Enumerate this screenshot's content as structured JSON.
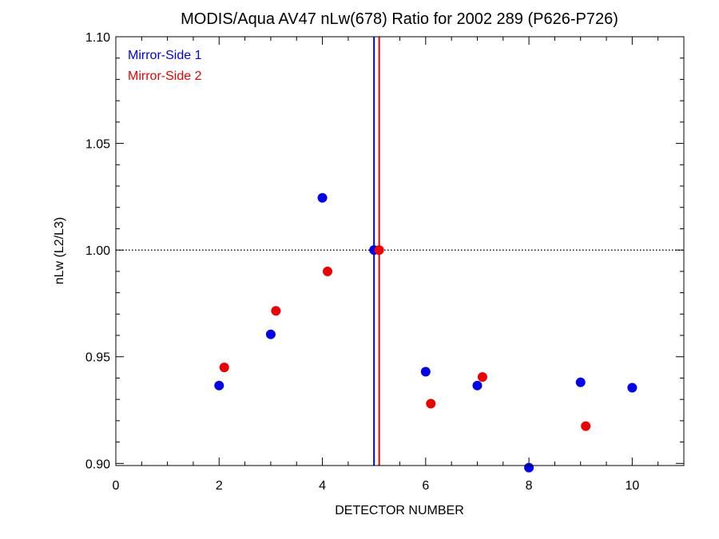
{
  "chart_data": {
    "type": "scatter",
    "title": "MODIS/Aqua AV47 nLw(678) Ratio for 2002 289 (P626-P726)",
    "xlabel": "DETECTOR NUMBER",
    "ylabel": "nLw (L2/L3)",
    "xlim": [
      0,
      11
    ],
    "ylim": [
      0.899,
      1.1
    ],
    "xticks": [
      0,
      2,
      4,
      6,
      8,
      10
    ],
    "xtick_labels": [
      "0",
      "2",
      "4",
      "6",
      "8",
      "10"
    ],
    "yticks": [
      0.9,
      0.95,
      1.0,
      1.05,
      1.1
    ],
    "ytick_labels": [
      "0.90",
      "0.95",
      "1.00",
      "1.05",
      "1.10"
    ],
    "reference_line": 1.0,
    "series": [
      {
        "name": "Mirror-Side 1",
        "color": "#0000ee",
        "x": [
          2,
          3,
          4,
          5,
          6,
          7,
          8,
          9,
          10
        ],
        "y": [
          0.9365,
          0.9605,
          1.0245,
          1.0,
          0.943,
          0.9365,
          0.898,
          0.938,
          0.9355
        ],
        "vline": 5.0
      },
      {
        "name": "Mirror-Side 2",
        "color": "#ee0000",
        "x": [
          2.1,
          3.1,
          4.1,
          5.1,
          6.1,
          7.1,
          9.1
        ],
        "y": [
          0.945,
          0.9715,
          0.99,
          1.0,
          0.928,
          0.9405,
          0.9175
        ],
        "vline": 5.1
      }
    ],
    "legend_position": "top-left"
  }
}
